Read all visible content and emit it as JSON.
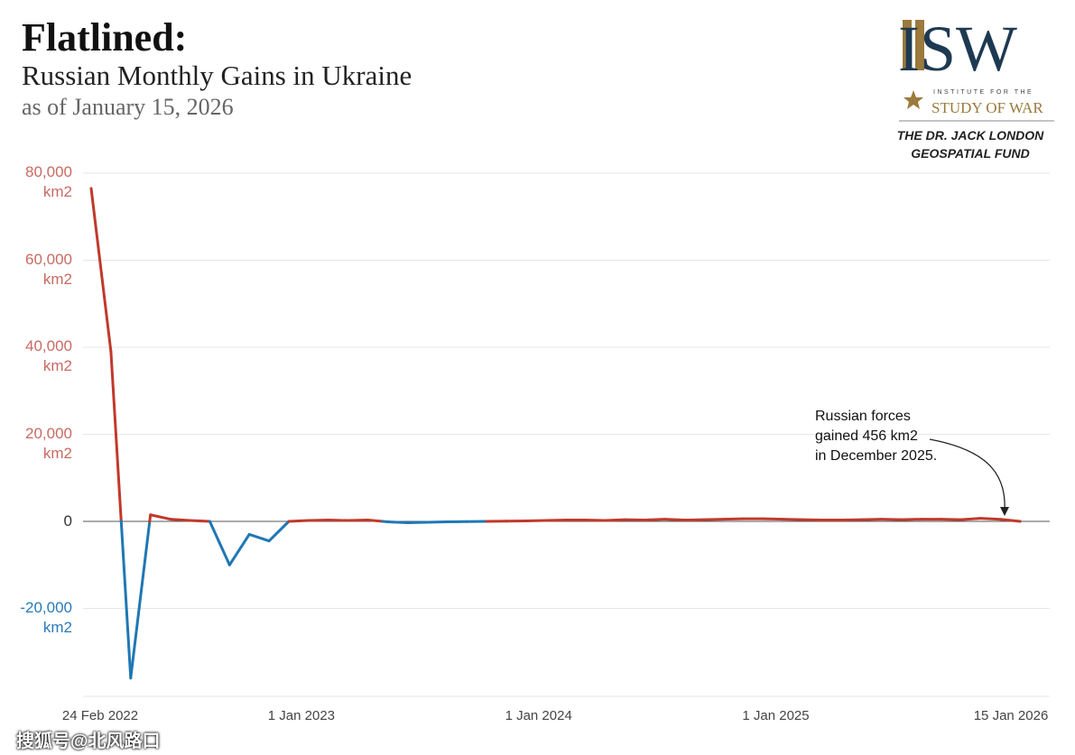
{
  "header": {
    "title": "Flatlined:",
    "subtitle": "Russian Monthly Gains in Ukraine",
    "date": "as of January 15, 2026"
  },
  "logo": {
    "letters": "ISW",
    "tagline_small": "INSTITUTE FOR THE",
    "tagline_large": "STUDY OF WAR",
    "fund_line1": "THE DR. JACK LONDON",
    "fund_line2": "GEOSPATIAL FUND"
  },
  "watermark": "搜狐号@北风路口",
  "colors": {
    "positive": "#c0392b",
    "negative": "#1f77b4",
    "grid": "#e6e6e6",
    "zero": "#555555"
  },
  "chart_data": {
    "type": "line",
    "title": "Russian Monthly Gains in Ukraine",
    "ylabel": "km2",
    "ylim": [
      -36000,
      80000
    ],
    "grid": true,
    "y_ticks": [
      {
        "value": 80000,
        "label": "80,000",
        "unit": "km2"
      },
      {
        "value": 60000,
        "label": "60,000",
        "unit": "km2"
      },
      {
        "value": 40000,
        "label": "40,000",
        "unit": "km2"
      },
      {
        "value": 20000,
        "label": "20,000",
        "unit": "km2"
      },
      {
        "value": 0,
        "label": "0",
        "unit": ""
      },
      {
        "value": -20000,
        "label": "-20,000",
        "unit": "km2"
      }
    ],
    "x_ticks": [
      {
        "month_index": 0,
        "label": "24 Feb 2022"
      },
      {
        "month_index": 11,
        "label": "1 Jan 2023"
      },
      {
        "month_index": 23,
        "label": "1 Jan 2024"
      },
      {
        "month_index": 35,
        "label": "1 Jan 2025"
      },
      {
        "month_index": 47,
        "label": "15 Jan 2026"
      }
    ],
    "x": [
      "2022-02",
      "2022-03",
      "2022-04",
      "2022-05",
      "2022-06",
      "2022-07",
      "2022-08",
      "2022-09",
      "2022-10",
      "2022-11",
      "2022-12",
      "2023-01",
      "2023-02",
      "2023-03",
      "2023-04",
      "2023-05",
      "2023-06",
      "2023-07",
      "2023-08",
      "2023-09",
      "2023-10",
      "2023-11",
      "2023-12",
      "2024-01",
      "2024-02",
      "2024-03",
      "2024-04",
      "2024-05",
      "2024-06",
      "2024-07",
      "2024-08",
      "2024-09",
      "2024-10",
      "2024-11",
      "2024-12",
      "2025-01",
      "2025-02",
      "2025-03",
      "2025-04",
      "2025-05",
      "2025-06",
      "2025-07",
      "2025-08",
      "2025-09",
      "2025-10",
      "2025-11",
      "2025-12",
      "2026-01"
    ],
    "values": [
      76500,
      39000,
      -36000,
      1500,
      500,
      200,
      0,
      -10000,
      -3000,
      -4500,
      0,
      200,
      300,
      200,
      300,
      -100,
      -300,
      -200,
      -100,
      -50,
      0,
      50,
      100,
      200,
      300,
      300,
      200,
      400,
      300,
      500,
      300,
      400,
      500,
      600,
      600,
      500,
      400,
      300,
      300,
      400,
      500,
      400,
      500,
      500,
      400,
      700,
      456,
      0
    ],
    "annotation": {
      "line1": "Russian forces",
      "line2": "gained 456 km2",
      "line3": "in December 2025.",
      "target": "2025-12"
    }
  }
}
